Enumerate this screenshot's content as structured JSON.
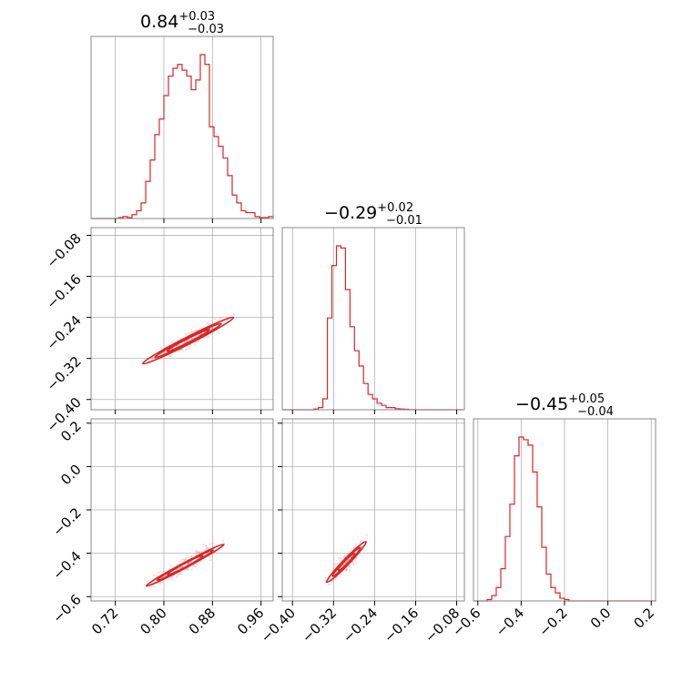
{
  "chart_data": {
    "type": "corner",
    "color": "#d62728",
    "grid": true,
    "parameters": [
      {
        "id": "p0",
        "title": {
          "median": "0.84",
          "upper": "+0.03",
          "lower": "−0.03"
        },
        "range": [
          0.68,
          0.98
        ],
        "ticks": [
          0.72,
          0.8,
          0.88,
          0.96
        ],
        "tick_labels": [
          "0.72",
          "0.80",
          "0.88",
          "0.96"
        ],
        "hist_bin_edges_start": 0.68,
        "hist_bin_width": 0.0075,
        "hist_counts": [
          0,
          0,
          0,
          0,
          0,
          0,
          0.5,
          1,
          0.5,
          2,
          4,
          8,
          19,
          30,
          43,
          51,
          63,
          73,
          77,
          79,
          76,
          73,
          66,
          71,
          84,
          79,
          47,
          42,
          37,
          31,
          22,
          12,
          8,
          4,
          3,
          3,
          1,
          0.5,
          0.5,
          1
        ]
      },
      {
        "id": "p1",
        "title": {
          "median": "−0.29",
          "upper": "+0.02",
          "lower": "−0.01"
        },
        "range": [
          -0.42,
          -0.065
        ],
        "ticks": [
          -0.4,
          -0.32,
          -0.24,
          -0.16,
          -0.08
        ],
        "tick_labels": [
          "−0.40",
          "−0.32",
          "−0.24",
          "−0.16",
          "−0.08"
        ],
        "hist_bin_edges_start": -0.42,
        "hist_bin_width": 0.0088,
        "hist_counts": [
          0,
          0,
          0,
          0,
          0,
          0,
          0,
          0.3,
          1,
          5,
          42,
          66,
          75,
          74,
          55,
          38,
          27,
          20,
          12,
          7,
          5,
          3,
          2,
          1,
          1,
          0.5,
          0.3,
          0.2,
          0,
          0,
          0,
          0,
          0,
          0,
          0,
          0,
          0,
          0,
          0,
          0
        ]
      },
      {
        "id": "p2",
        "title": {
          "median": "−0.45",
          "upper": "+0.05",
          "lower": "−0.04"
        },
        "range": [
          -0.62,
          0.22
        ],
        "ticks": [
          -0.6,
          -0.4,
          -0.2,
          0.0,
          0.2
        ],
        "tick_labels": [
          "−0.6",
          "−0.4",
          "−0.2",
          "0.0",
          "0.2"
        ],
        "hist_bin_edges_start": -0.62,
        "hist_bin_width": 0.021,
        "hist_counts": [
          0,
          0,
          0,
          0.5,
          2,
          5,
          12,
          24,
          36,
          54,
          61,
          60,
          58,
          48,
          35,
          20,
          10,
          5,
          3,
          1,
          0.5,
          0,
          0,
          0,
          0,
          0,
          0,
          0,
          0,
          0,
          0,
          0,
          0,
          0,
          0,
          0,
          0,
          0,
          0,
          0
        ]
      }
    ],
    "pairs": [
      {
        "x": "p0",
        "y": "p1",
        "center": [
          0.84,
          -0.285
        ],
        "axis_direction": [
          0.088,
          0.053
        ],
        "contours": [
          {
            "half_length": 0.85,
            "half_width": 0.007
          },
          {
            "half_length": 0.62,
            "half_width": 0.005
          },
          {
            "half_length": 0.4,
            "half_width": 0.0035
          }
        ]
      },
      {
        "x": "p0",
        "y": "p2",
        "center": [
          0.835,
          -0.455
        ],
        "axis_direction": [
          0.08,
          0.12
        ],
        "contours": [
          {
            "half_length": 0.8,
            "half_width": 0.012
          },
          {
            "half_length": 0.58,
            "half_width": 0.009
          },
          {
            "half_length": 0.36,
            "half_width": 0.006
          }
        ]
      },
      {
        "x": "p1",
        "y": "p2",
        "center": [
          -0.295,
          -0.44
        ],
        "axis_direction": [
          0.045,
          0.11
        ],
        "contours": [
          {
            "half_length": 0.85,
            "half_width": 0.014
          },
          {
            "half_length": 0.6,
            "half_width": 0.01
          },
          {
            "half_length": 0.35,
            "half_width": 0.007
          }
        ]
      }
    ]
  }
}
